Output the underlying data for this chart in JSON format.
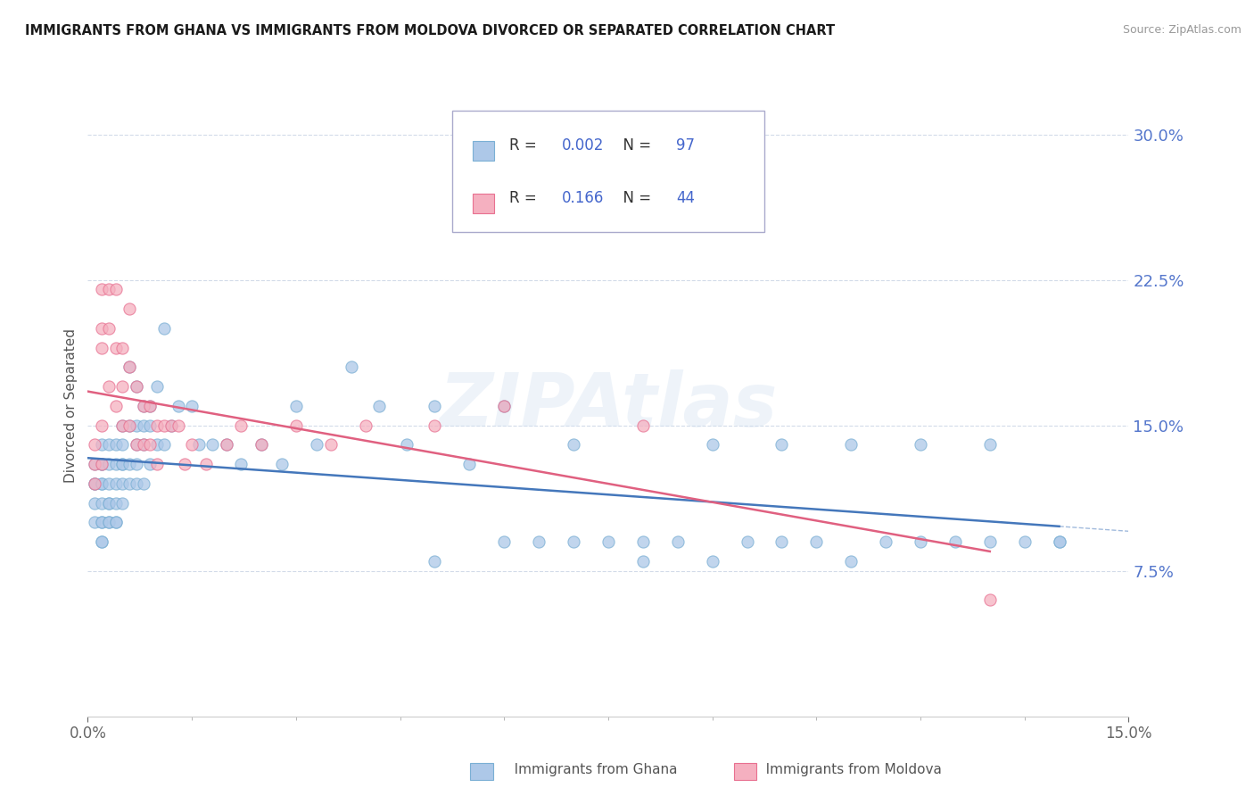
{
  "title": "IMMIGRANTS FROM GHANA VS IMMIGRANTS FROM MOLDOVA DIVORCED OR SEPARATED CORRELATION CHART",
  "source": "Source: ZipAtlas.com",
  "ylabel": "Divorced or Separated",
  "xlim": [
    0.0,
    0.15
  ],
  "ylim": [
    0.0,
    0.32
  ],
  "yticks": [
    0.075,
    0.15,
    0.225,
    0.3
  ],
  "ytick_labels": [
    "7.5%",
    "15.0%",
    "22.5%",
    "30.0%"
  ],
  "ghana_color": "#adc8e8",
  "moldova_color": "#f5b0c0",
  "ghana_edge_color": "#7aafd4",
  "moldova_edge_color": "#e87090",
  "trend_ghana_color": "#4477bb",
  "trend_moldova_color": "#e06080",
  "R_ghana": 0.002,
  "N_ghana": 97,
  "R_moldova": 0.166,
  "N_moldova": 44,
  "legend_labels": [
    "Immigrants from Ghana",
    "Immigrants from Moldova"
  ],
  "watermark_text": "ZIPAtlas",
  "ghana_x": [
    0.001,
    0.001,
    0.001,
    0.001,
    0.001,
    0.002,
    0.002,
    0.002,
    0.002,
    0.002,
    0.002,
    0.002,
    0.002,
    0.002,
    0.002,
    0.003,
    0.003,
    0.003,
    0.003,
    0.003,
    0.003,
    0.003,
    0.004,
    0.004,
    0.004,
    0.004,
    0.004,
    0.004,
    0.005,
    0.005,
    0.005,
    0.005,
    0.005,
    0.005,
    0.006,
    0.006,
    0.006,
    0.006,
    0.007,
    0.007,
    0.007,
    0.007,
    0.007,
    0.008,
    0.008,
    0.008,
    0.008,
    0.009,
    0.009,
    0.009,
    0.01,
    0.01,
    0.011,
    0.011,
    0.012,
    0.013,
    0.015,
    0.016,
    0.018,
    0.02,
    0.022,
    0.025,
    0.028,
    0.03,
    0.033,
    0.038,
    0.042,
    0.046,
    0.05,
    0.055,
    0.06,
    0.065,
    0.07,
    0.075,
    0.08,
    0.085,
    0.09,
    0.095,
    0.1,
    0.105,
    0.11,
    0.115,
    0.12,
    0.125,
    0.13,
    0.135,
    0.14,
    0.06,
    0.07,
    0.08,
    0.09,
    0.1,
    0.11,
    0.12,
    0.13,
    0.14,
    0.05
  ],
  "ghana_y": [
    0.13,
    0.12,
    0.12,
    0.11,
    0.1,
    0.14,
    0.13,
    0.13,
    0.12,
    0.12,
    0.11,
    0.1,
    0.1,
    0.09,
    0.09,
    0.14,
    0.13,
    0.12,
    0.11,
    0.11,
    0.1,
    0.1,
    0.14,
    0.13,
    0.12,
    0.11,
    0.1,
    0.1,
    0.15,
    0.14,
    0.13,
    0.13,
    0.12,
    0.11,
    0.18,
    0.15,
    0.13,
    0.12,
    0.17,
    0.15,
    0.14,
    0.13,
    0.12,
    0.16,
    0.15,
    0.14,
    0.12,
    0.16,
    0.15,
    0.13,
    0.17,
    0.14,
    0.2,
    0.14,
    0.15,
    0.16,
    0.16,
    0.14,
    0.14,
    0.14,
    0.13,
    0.14,
    0.13,
    0.16,
    0.14,
    0.18,
    0.16,
    0.14,
    0.16,
    0.13,
    0.16,
    0.09,
    0.14,
    0.09,
    0.09,
    0.09,
    0.14,
    0.09,
    0.14,
    0.09,
    0.14,
    0.09,
    0.14,
    0.09,
    0.14,
    0.09,
    0.09,
    0.09,
    0.09,
    0.08,
    0.08,
    0.09,
    0.08,
    0.09,
    0.09,
    0.09,
    0.08
  ],
  "moldova_x": [
    0.001,
    0.001,
    0.001,
    0.002,
    0.002,
    0.002,
    0.002,
    0.002,
    0.003,
    0.003,
    0.003,
    0.004,
    0.004,
    0.004,
    0.005,
    0.005,
    0.005,
    0.006,
    0.006,
    0.006,
    0.007,
    0.007,
    0.008,
    0.008,
    0.009,
    0.009,
    0.01,
    0.01,
    0.011,
    0.012,
    0.013,
    0.014,
    0.015,
    0.017,
    0.02,
    0.022,
    0.025,
    0.03,
    0.035,
    0.04,
    0.05,
    0.06,
    0.08,
    0.13
  ],
  "moldova_y": [
    0.14,
    0.13,
    0.12,
    0.22,
    0.2,
    0.19,
    0.15,
    0.13,
    0.22,
    0.2,
    0.17,
    0.22,
    0.19,
    0.16,
    0.19,
    0.17,
    0.15,
    0.21,
    0.18,
    0.15,
    0.17,
    0.14,
    0.16,
    0.14,
    0.16,
    0.14,
    0.15,
    0.13,
    0.15,
    0.15,
    0.15,
    0.13,
    0.14,
    0.13,
    0.14,
    0.15,
    0.14,
    0.15,
    0.14,
    0.15,
    0.15,
    0.16,
    0.15,
    0.06
  ]
}
